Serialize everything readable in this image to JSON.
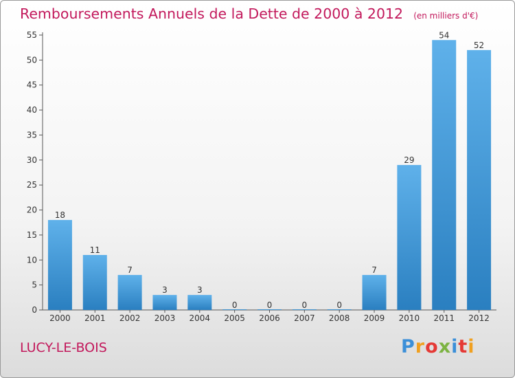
{
  "colors": {
    "title": "#c2185b",
    "bar_light": "#5fb1ea",
    "bar_dark": "#2a7fc0",
    "axis": "#555555",
    "grid": "#dddddd"
  },
  "chart_data": {
    "type": "bar",
    "title": "Remboursements Annuels de la Dette de 2000 à 2012",
    "subtitle": "(en milliers d'€)",
    "xlabel": "",
    "ylabel": "",
    "categories": [
      "2000",
      "2001",
      "2002",
      "2003",
      "2004",
      "2005",
      "2006",
      "2007",
      "2008",
      "2009",
      "2010",
      "2011",
      "2012"
    ],
    "values": [
      18,
      11,
      7,
      3,
      3,
      0,
      0,
      0,
      0,
      7,
      29,
      54,
      52
    ],
    "ylim": [
      0,
      55
    ],
    "yticks": [
      0,
      5,
      10,
      15,
      20,
      25,
      30,
      35,
      40,
      45,
      50,
      55
    ],
    "grid": false,
    "data_labels": true
  },
  "commune": "LUCY-LE-BOIS",
  "logo": {
    "text": "Proxiti",
    "letter_colors": [
      "#3b8fd8",
      "#f0a020",
      "#e53935",
      "#7cb342",
      "#3b8fd8",
      "#e53935",
      "#f0a020"
    ]
  }
}
